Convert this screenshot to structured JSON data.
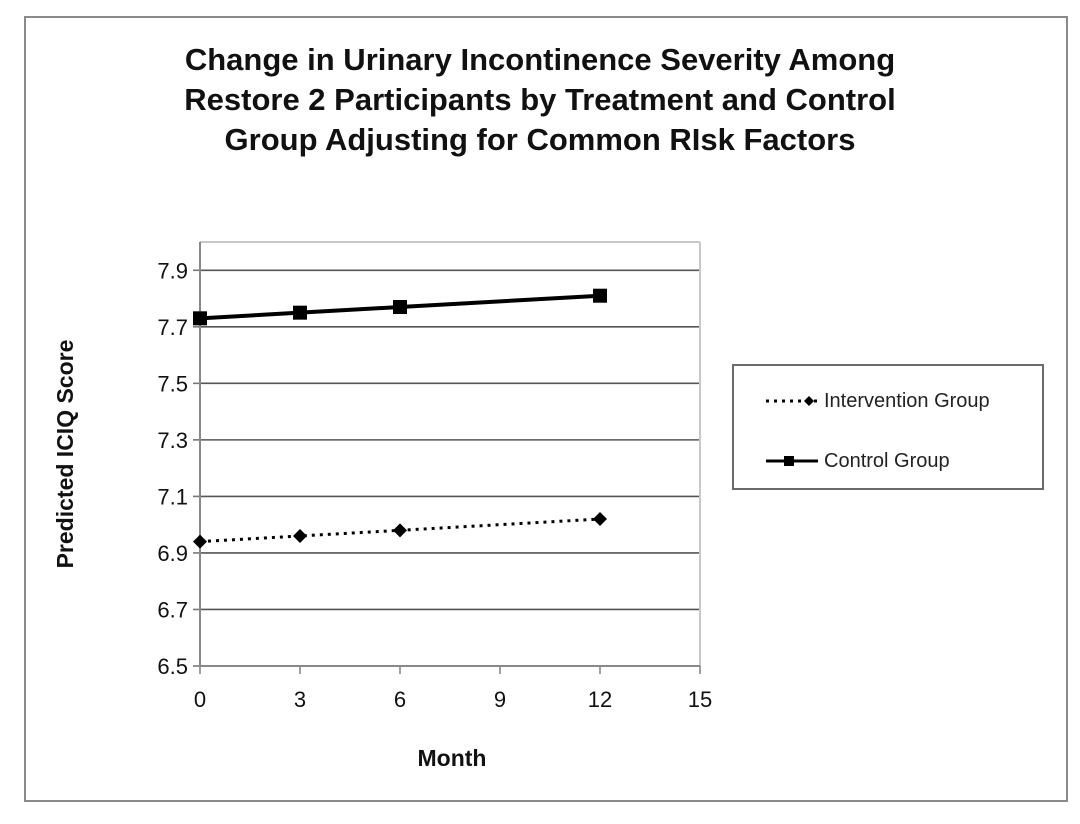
{
  "chart_data": {
    "type": "line",
    "title": "Change in Urinary Incontinence Severity Among\nRestore 2 Participants by Treatment and Control\nGroup Adjusting for Common RIsk Factors",
    "xlabel": "Month",
    "ylabel": "Predicted ICIQ Score",
    "xlim": [
      0,
      15
    ],
    "ylim": [
      6.5,
      8.0
    ],
    "xticks": [
      "0",
      "3",
      "6",
      "9",
      "12",
      "15"
    ],
    "yticks": [
      "6.5",
      "6.7",
      "6.9",
      "7.1",
      "7.3",
      "7.5",
      "7.7",
      "7.9"
    ],
    "grid": "horizontal",
    "legend_position": "right",
    "x": [
      0,
      3,
      6,
      12
    ],
    "series": [
      {
        "name": "Intervention Group",
        "values": [
          6.94,
          6.96,
          6.98,
          7.02
        ],
        "line": "dotted",
        "marker": "diamond",
        "color": "#000000"
      },
      {
        "name": "Control Group",
        "values": [
          7.73,
          7.75,
          7.77,
          7.81
        ],
        "line": "solid",
        "marker": "square",
        "color": "#000000"
      }
    ]
  }
}
